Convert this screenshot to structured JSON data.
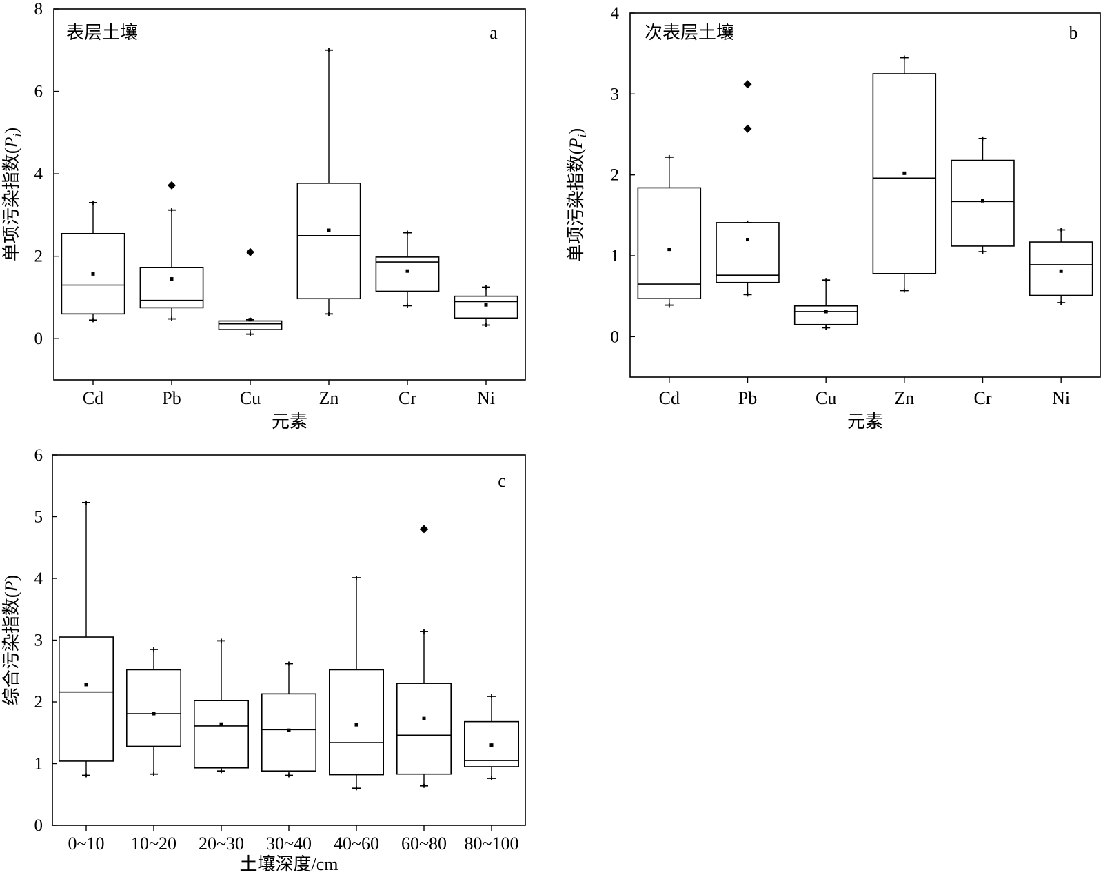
{
  "chart_data": [
    {
      "type": "box",
      "panel_label": "a",
      "title": "表层土壤",
      "xlabel": "元素",
      "ylabel": "单项污染指数(",
      "ylabel_var": "P",
      "ylabel_sub": "i",
      "ylabel_close": ")",
      "ylim": [
        -1,
        8
      ],
      "yticks": [
        0,
        2,
        4,
        6,
        8
      ],
      "categories": [
        "Cd",
        "Pb",
        "Cu",
        "Zn",
        "Cr",
        "Ni"
      ],
      "boxes": [
        {
          "min": 0.45,
          "q1": 0.6,
          "median": 1.3,
          "q3": 2.55,
          "max": 3.3,
          "mean": 1.57,
          "outliers": []
        },
        {
          "min": 0.48,
          "q1": 0.75,
          "median": 0.93,
          "q3": 1.73,
          "max": 3.12,
          "mean": 1.45,
          "outliers": [
            3.72
          ]
        },
        {
          "min": 0.11,
          "q1": 0.22,
          "median": 0.36,
          "q3": 0.43,
          "max": 0.46,
          "mean": 0.46,
          "outliers": [
            2.1
          ]
        },
        {
          "min": 0.6,
          "q1": 0.97,
          "median": 2.5,
          "q3": 3.77,
          "max": 7.0,
          "mean": 2.63,
          "outliers": []
        },
        {
          "min": 0.8,
          "q1": 1.15,
          "median": 1.86,
          "q3": 1.98,
          "max": 2.57,
          "mean": 1.64,
          "outliers": []
        },
        {
          "min": 0.33,
          "q1": 0.5,
          "median": 0.9,
          "q3": 1.03,
          "max": 1.25,
          "mean": 0.82,
          "outliers": []
        }
      ]
    },
    {
      "type": "box",
      "panel_label": "b",
      "title": "次表层土壤",
      "xlabel": "元素",
      "ylabel": "单项污染指数(",
      "ylabel_var": "P",
      "ylabel_sub": "i",
      "ylabel_close": ")",
      "ylim": [
        -0.5,
        4
      ],
      "yticks": [
        0,
        1,
        2,
        3,
        4
      ],
      "categories": [
        "Cd",
        "Pb",
        "Cu",
        "Zn",
        "Cr",
        "Ni"
      ],
      "boxes": [
        {
          "min": 0.39,
          "q1": 0.47,
          "median": 0.65,
          "q3": 1.84,
          "max": 2.22,
          "mean": 1.08,
          "outliers": []
        },
        {
          "min": 0.52,
          "q1": 0.67,
          "median": 0.76,
          "q3": 1.41,
          "max": 1.41,
          "mean": 1.2,
          "outliers": [
            2.57,
            3.12
          ]
        },
        {
          "min": 0.11,
          "q1": 0.15,
          "median": 0.31,
          "q3": 0.38,
          "max": 0.7,
          "mean": 0.31,
          "outliers": []
        },
        {
          "min": 0.57,
          "q1": 0.78,
          "median": 1.96,
          "q3": 3.25,
          "max": 3.45,
          "mean": 2.02,
          "outliers": []
        },
        {
          "min": 1.05,
          "q1": 1.12,
          "median": 1.67,
          "q3": 2.18,
          "max": 2.45,
          "mean": 1.68,
          "outliers": []
        },
        {
          "min": 0.42,
          "q1": 0.51,
          "median": 0.89,
          "q3": 1.17,
          "max": 1.32,
          "mean": 0.81,
          "outliers": []
        }
      ]
    },
    {
      "type": "box",
      "panel_label": "c",
      "title": "",
      "xlabel": "土壤深度/cm",
      "ylabel": "综合污染指数(",
      "ylabel_var": "P",
      "ylabel_sub": "",
      "ylabel_close": ")",
      "ylim": [
        0,
        6
      ],
      "yticks": [
        0,
        1,
        2,
        3,
        4,
        5,
        6
      ],
      "categories": [
        "0~10",
        "10~20",
        "20~30",
        "30~40",
        "40~60",
        "60~80",
        "80~100"
      ],
      "boxes": [
        {
          "min": 0.81,
          "q1": 1.04,
          "median": 2.16,
          "q3": 3.05,
          "max": 5.23,
          "mean": 2.28,
          "outliers": []
        },
        {
          "min": 0.83,
          "q1": 1.28,
          "median": 1.81,
          "q3": 2.52,
          "max": 2.85,
          "mean": 1.81,
          "outliers": []
        },
        {
          "min": 0.88,
          "q1": 0.93,
          "median": 1.61,
          "q3": 2.02,
          "max": 2.99,
          "mean": 1.64,
          "outliers": []
        },
        {
          "min": 0.81,
          "q1": 0.88,
          "median": 1.55,
          "q3": 2.13,
          "max": 2.62,
          "mean": 1.54,
          "outliers": []
        },
        {
          "min": 0.6,
          "q1": 0.82,
          "median": 1.34,
          "q3": 2.52,
          "max": 4.01,
          "mean": 1.63,
          "outliers": []
        },
        {
          "min": 0.64,
          "q1": 0.83,
          "median": 1.46,
          "q3": 2.3,
          "max": 3.14,
          "mean": 1.73,
          "outliers": [
            4.8
          ]
        },
        {
          "min": 0.76,
          "q1": 0.95,
          "median": 1.05,
          "q3": 1.68,
          "max": 2.09,
          "mean": 1.3,
          "outliers": []
        }
      ]
    }
  ]
}
